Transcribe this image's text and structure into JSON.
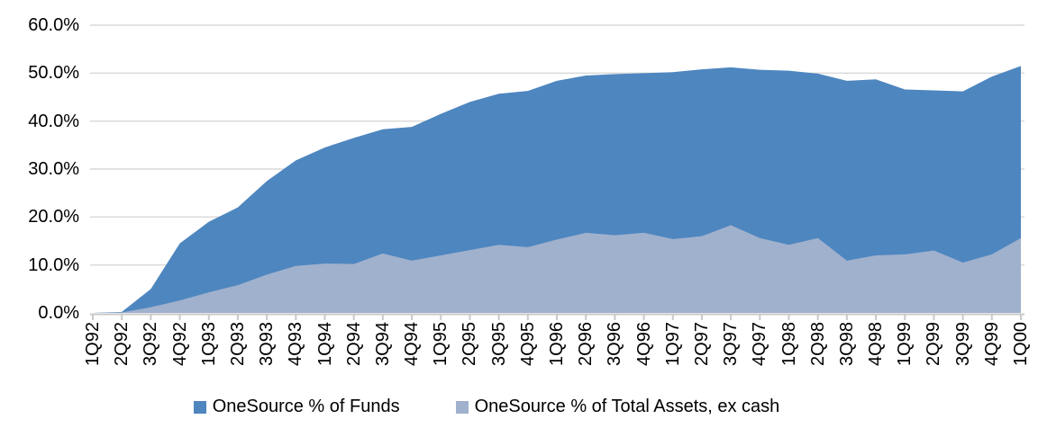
{
  "chart_data": {
    "type": "area",
    "title": "",
    "xlabel": "",
    "ylabel": "",
    "ylim": [
      0,
      60
    ],
    "grid": true,
    "legend_position": "bottom",
    "ytick_labels": [
      "0.0%",
      "10.0%",
      "20.0%",
      "30.0%",
      "40.0%",
      "50.0%",
      "60.0%"
    ],
    "categories": [
      "1Q92",
      "2Q92",
      "3Q92",
      "4Q92",
      "1Q93",
      "2Q93",
      "3Q93",
      "4Q93",
      "1Q94",
      "2Q94",
      "3Q94",
      "4Q94",
      "1Q95",
      "2Q95",
      "3Q95",
      "4Q95",
      "1Q96",
      "2Q96",
      "3Q96",
      "4Q96",
      "1Q97",
      "2Q97",
      "3Q97",
      "4Q97",
      "1Q98",
      "2Q98",
      "3Q98",
      "4Q98",
      "1Q99",
      "2Q99",
      "3Q99",
      "4Q99",
      "1Q00"
    ],
    "series": [
      {
        "name": "OneSource % of Funds",
        "color": "#4E86BF",
        "values": [
          0,
          0.2,
          5.0,
          14.5,
          19.0,
          22.0,
          27.5,
          31.8,
          34.5,
          36.5,
          38.3,
          38.8,
          41.5,
          44.0,
          45.7,
          46.3,
          48.4,
          49.5,
          49.8,
          50.0,
          50.2,
          50.8,
          51.2,
          50.7,
          50.5,
          49.9,
          48.4,
          48.7,
          46.6,
          46.4,
          46.2,
          49.3,
          51.5
        ]
      },
      {
        "name": "OneSource % of Total Assets, ex cash",
        "color": "#A0B1CD",
        "values": [
          0,
          0.1,
          1.2,
          2.6,
          4.3,
          5.8,
          8.0,
          9.8,
          10.3,
          10.2,
          12.4,
          10.9,
          12.0,
          13.1,
          14.2,
          13.7,
          15.3,
          16.7,
          16.2,
          16.7,
          15.4,
          16.0,
          18.3,
          15.6,
          14.2,
          15.6,
          10.9,
          12.0,
          12.2,
          13.0,
          10.5,
          12.2,
          15.6
        ]
      }
    ],
    "colors": {
      "gridline": "#D9D9D9",
      "axis": "#C9C9C9",
      "text": "#000000",
      "background": "#FFFFFF"
    }
  }
}
